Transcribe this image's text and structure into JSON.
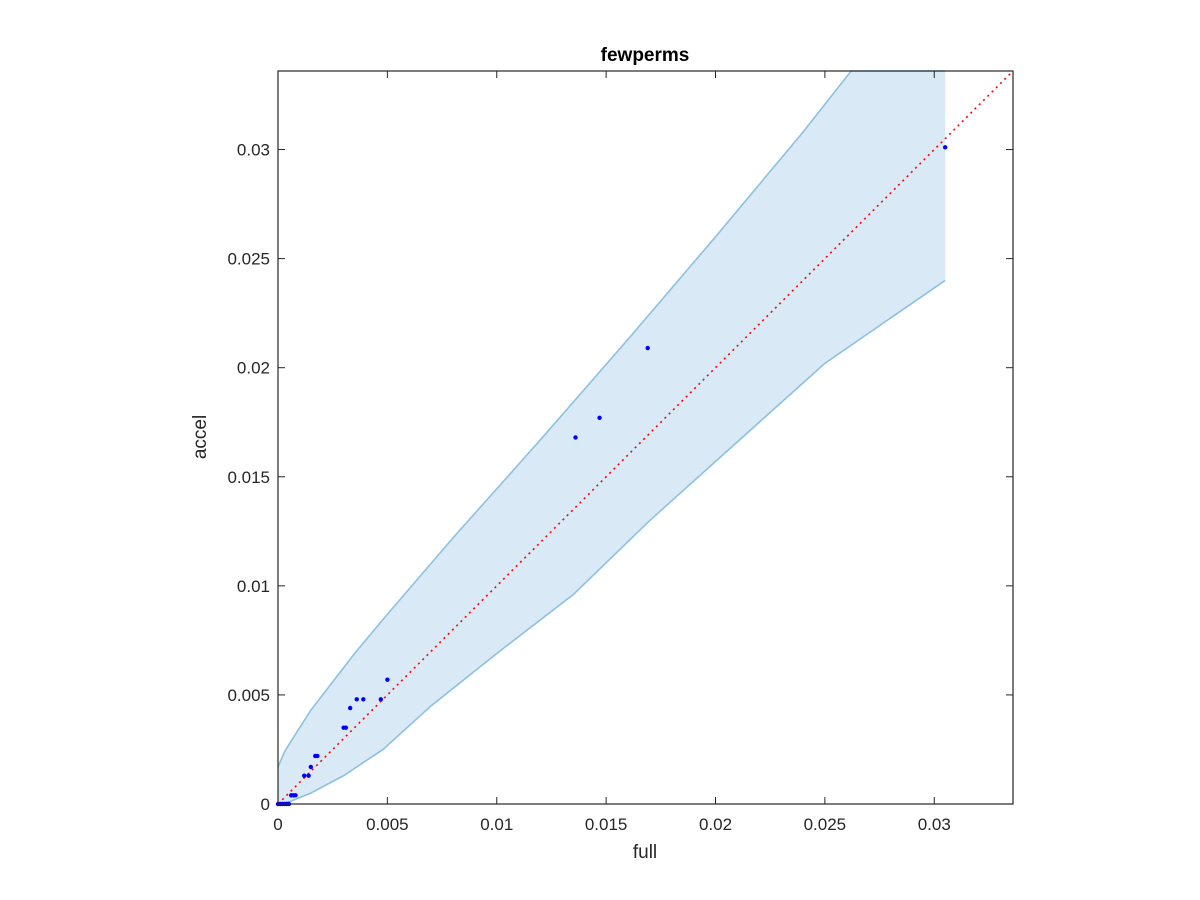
{
  "chart_data": {
    "type": "scatter",
    "title": "fewperms",
    "xlabel": "full",
    "ylabel": "accel",
    "xlim": [
      0,
      0.0336
    ],
    "ylim": [
      0,
      0.0336
    ],
    "grid": false,
    "xticks": [
      {
        "value": 0,
        "label": "0"
      },
      {
        "value": 0.005,
        "label": "0.005"
      },
      {
        "value": 0.01,
        "label": "0.01"
      },
      {
        "value": 0.015,
        "label": "0.015"
      },
      {
        "value": 0.02,
        "label": "0.02"
      },
      {
        "value": 0.025,
        "label": "0.025"
      },
      {
        "value": 0.03,
        "label": "0.03"
      }
    ],
    "yticks": [
      {
        "value": 0,
        "label": "0"
      },
      {
        "value": 0.005,
        "label": "0.005"
      },
      {
        "value": 0.01,
        "label": "0.01"
      },
      {
        "value": 0.015,
        "label": "0.015"
      },
      {
        "value": 0.02,
        "label": "0.02"
      },
      {
        "value": 0.025,
        "label": "0.025"
      },
      {
        "value": 0.03,
        "label": "0.03"
      }
    ],
    "band": {
      "upper": [
        [
          0,
          0.0017
        ],
        [
          0.0003,
          0.0024
        ],
        [
          0.0008,
          0.0032
        ],
        [
          0.0015,
          0.0043
        ],
        [
          0.0025,
          0.0056
        ],
        [
          0.0035,
          0.0069
        ],
        [
          0.005,
          0.0087
        ],
        [
          0.008,
          0.0122
        ],
        [
          0.012,
          0.0167
        ],
        [
          0.016,
          0.0213
        ],
        [
          0.02,
          0.026
        ],
        [
          0.024,
          0.0308
        ],
        [
          0.0262,
          0.0336
        ],
        [
          0.0305,
          0.0336
        ]
      ],
      "lower": [
        [
          0,
          0
        ],
        [
          0.0005,
          0.0001
        ],
        [
          0.0015,
          0.0005
        ],
        [
          0.003,
          0.0013
        ],
        [
          0.0048,
          0.0025
        ],
        [
          0.007,
          0.0045
        ],
        [
          0.01,
          0.0069
        ],
        [
          0.0135,
          0.0096
        ],
        [
          0.017,
          0.013
        ],
        [
          0.021,
          0.0166
        ],
        [
          0.025,
          0.0202
        ],
        [
          0.0305,
          0.024
        ]
      ],
      "fill_color": "#d9e9f5",
      "line_color": "#8cc1e2"
    },
    "reference_line": {
      "from": [
        0,
        0
      ],
      "to": [
        0.0336,
        0.0336
      ],
      "color": "#ff0000",
      "style": "dotted"
    },
    "series": [
      {
        "color": "#0000ff",
        "points": [
          [
            0,
            0
          ],
          [
            0.0001,
            0
          ],
          [
            0.0002,
            0
          ],
          [
            0.0003,
            0
          ],
          [
            0.0004,
            0
          ],
          [
            0.0005,
            0
          ],
          [
            0.0006,
            0.0004
          ],
          [
            0.0007,
            0.0004
          ],
          [
            0.0008,
            0.0004
          ],
          [
            0.0012,
            0.0013
          ],
          [
            0.0014,
            0.0013
          ],
          [
            0.0015,
            0.0017
          ],
          [
            0.0017,
            0.0022
          ],
          [
            0.0018,
            0.0022
          ],
          [
            0.003,
            0.0035
          ],
          [
            0.0031,
            0.0035
          ],
          [
            0.0033,
            0.0044
          ],
          [
            0.0036,
            0.0048
          ],
          [
            0.0039,
            0.0048
          ],
          [
            0.0047,
            0.0048
          ],
          [
            0.005,
            0.0057
          ],
          [
            0.0136,
            0.0168
          ],
          [
            0.0147,
            0.0177
          ],
          [
            0.0169,
            0.0209
          ],
          [
            0.0305,
            0.0301
          ]
        ]
      }
    ]
  }
}
